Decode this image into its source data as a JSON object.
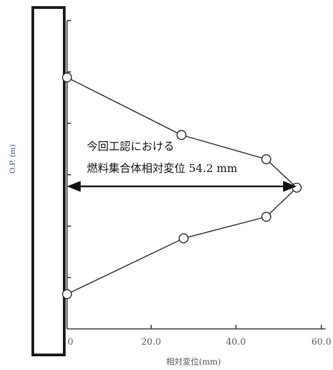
{
  "chart_data": {
    "type": "line",
    "xlabel": "相対変位(mm)",
    "ylabel": "O.P. (m)",
    "xlim": [
      0,
      60
    ],
    "x_ticks": [
      "0",
      "20.0",
      "40.0",
      "60.0"
    ],
    "grid": false,
    "series": [
      {
        "points": [
          {
            "x": 0,
            "y": 0
          },
          {
            "x": 27,
            "y": 1.66
          },
          {
            "x": 47,
            "y": 2.36
          },
          {
            "x": 54.2,
            "y": 3.18
          },
          {
            "x": 47,
            "y": 4.02
          },
          {
            "x": 27.5,
            "y": 4.64
          },
          {
            "x": 0,
            "y": 6.25
          }
        ]
      }
    ],
    "annotation": {
      "line1": "今回工認における",
      "line2": "燃料集合体相対変位 54.2 mm",
      "value": 54.2
    },
    "colors": {
      "axis_label": "#3a5f8a",
      "line": "#222222",
      "wall_fill": "#ffffff",
      "wall_stroke": "#1a1a1a"
    }
  }
}
